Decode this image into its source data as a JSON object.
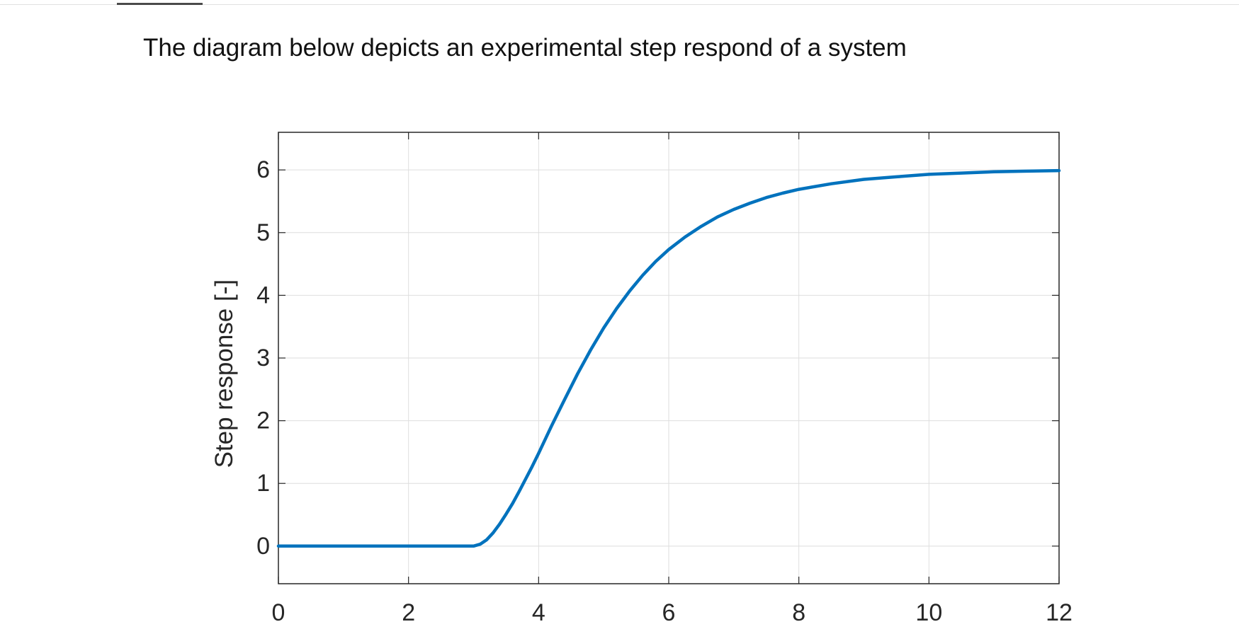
{
  "question": {
    "text": "The diagram below depicts an experimental step respond of a system"
  },
  "chart_data": {
    "type": "line",
    "title": "",
    "xlabel": "",
    "ylabel": "Step response [-]",
    "xlim": [
      0,
      12
    ],
    "ylim": [
      -0.6,
      6.6
    ],
    "xticks": [
      0,
      2,
      4,
      6,
      8,
      10,
      12
    ],
    "yticks": [
      0,
      1,
      2,
      3,
      4,
      5,
      6
    ],
    "xtick_labels": [
      "0",
      "2",
      "4",
      "6",
      "8",
      "10",
      "12"
    ],
    "ytick_labels": [
      "0",
      "1",
      "2",
      "3",
      "4",
      "5",
      "6"
    ],
    "grid": true,
    "line_color": "#0072BD",
    "series": [
      {
        "x": [
          0,
          1,
          2,
          3,
          3.1,
          3.2,
          3.3,
          3.4,
          3.5,
          3.6,
          3.7,
          3.8,
          3.9,
          4,
          4.2,
          4.4,
          4.6,
          4.8,
          5,
          5.2,
          5.4,
          5.6,
          5.8,
          6,
          6.25,
          6.5,
          6.75,
          7,
          7.25,
          7.5,
          7.75,
          8,
          8.5,
          9,
          9.5,
          10,
          10.5,
          11,
          11.5,
          12
        ],
        "y": [
          0,
          0,
          0,
          0,
          0.03,
          0.1,
          0.21,
          0.35,
          0.51,
          0.68,
          0.87,
          1.07,
          1.27,
          1.48,
          1.92,
          2.34,
          2.75,
          3.13,
          3.48,
          3.79,
          4.07,
          4.32,
          4.54,
          4.73,
          4.93,
          5.1,
          5.25,
          5.37,
          5.47,
          5.56,
          5.63,
          5.69,
          5.78,
          5.85,
          5.89,
          5.93,
          5.95,
          5.97,
          5.98,
          5.99
        ]
      }
    ]
  }
}
